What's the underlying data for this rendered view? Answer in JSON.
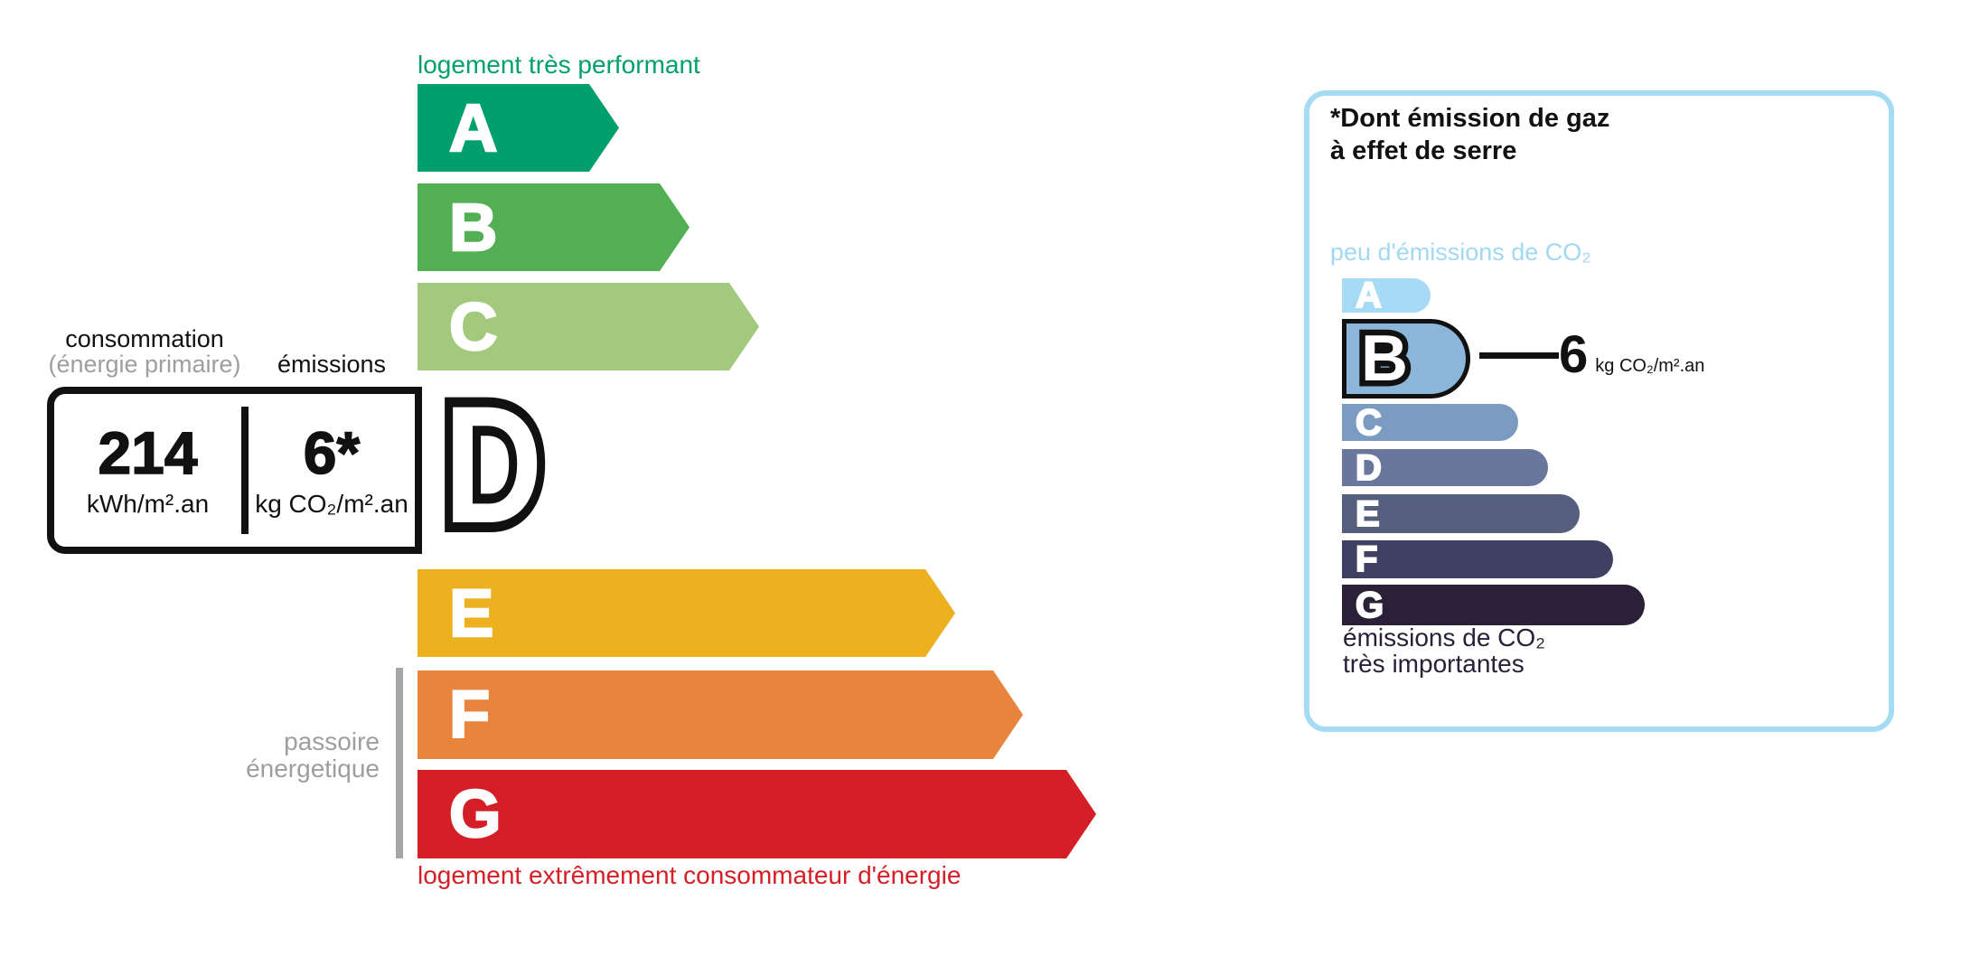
{
  "epc": {
    "top_caption": "logement très performant",
    "bottom_caption": "logement extrêmement consommateur d'énergie",
    "sidebar_caption_line1": "passoire",
    "sidebar_caption_line2": "énergetique",
    "headers": {
      "consumption": "consommation",
      "consumption_sub": "(énergie primaire)",
      "emissions": "émissions"
    },
    "values": {
      "consumption": "214",
      "consumption_unit": "kWh/m².an",
      "emissions": "6*",
      "emissions_unit": "kg CO₂/m².an"
    },
    "active_grade": "D",
    "grades": [
      {
        "letter": "A",
        "color": "#009f6d"
      },
      {
        "letter": "B",
        "color": "#52af53"
      },
      {
        "letter": "C",
        "color": "#a3c97d"
      },
      {
        "letter": "D",
        "color": "#f2e616"
      },
      {
        "letter": "E",
        "color": "#edb01f"
      },
      {
        "letter": "F",
        "color": "#e8843c"
      },
      {
        "letter": "G",
        "color": "#d41f27"
      }
    ],
    "colors": {
      "caption_top": "#00a06d",
      "caption_bottom": "#d41f27",
      "muted_text": "#9e9e9e",
      "sidebar_bar": "#a6a6a6",
      "outline": "#111111"
    }
  },
  "co2_panel": {
    "title_line1": "*Dont émission de gaz",
    "title_line2": "à effet de serre",
    "low_caption": "peu d'émissions de CO₂",
    "high_caption_line1": "émissions de CO₂",
    "high_caption_line2": "très importantes",
    "value": "6",
    "value_unit": "kg CO₂/m².an",
    "active_grade": "B",
    "grades": [
      {
        "letter": "A",
        "color": "#a6daf5"
      },
      {
        "letter": "B",
        "color": "#8cb5da"
      },
      {
        "letter": "C",
        "color": "#7b9cc0"
      },
      {
        "letter": "D",
        "color": "#68779b"
      },
      {
        "letter": "E",
        "color": "#555f7d"
      },
      {
        "letter": "F",
        "color": "#3e4161"
      },
      {
        "letter": "G",
        "color": "#2a2038"
      }
    ],
    "colors": {
      "border": "#a6dbf4",
      "low_text": "#a2d8f2",
      "high_text": "#2a2038",
      "title_text": "#111111"
    }
  }
}
